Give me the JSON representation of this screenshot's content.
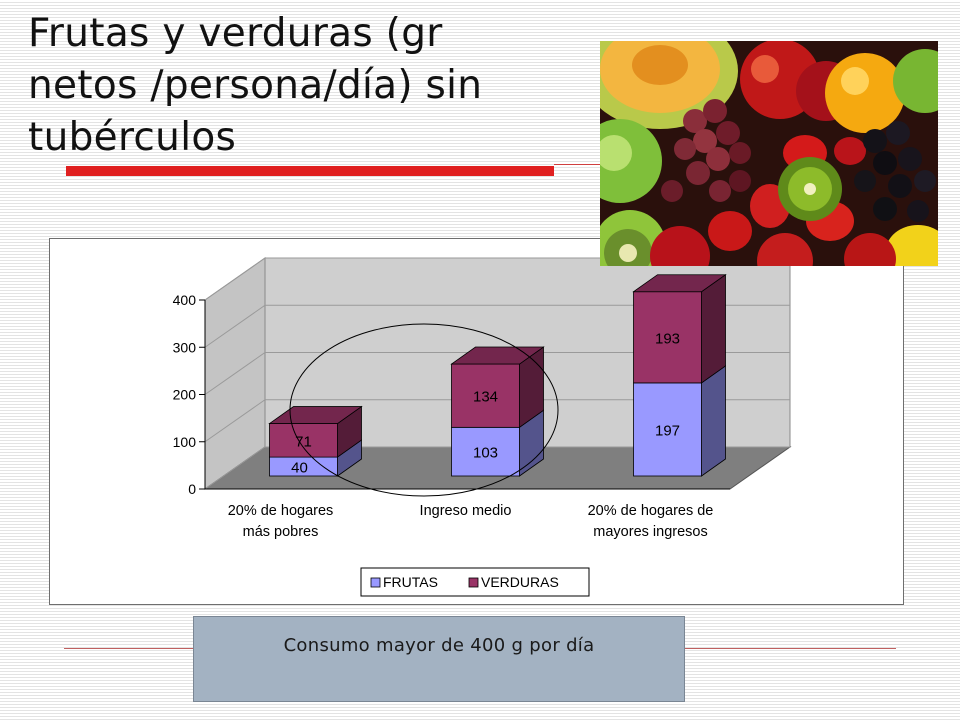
{
  "slide": {
    "title_line1": "Frutas y verduras (gr",
    "title_line2": "netos /persona/día) sin",
    "title_line3": "tubérculos",
    "note": "Consumo mayor de 400 g por día",
    "accent_color": "#e02020"
  },
  "photo": {
    "subject": "assorted fruits: melon, grapes, kiwi, strawberries, apples, orange"
  },
  "chart_data": {
    "type": "bar",
    "stacked": true,
    "style": "3d",
    "categories": [
      "20% de hogares\nmás pobres",
      "Ingreso medio",
      "20% de hogares de\nmayores ingresos"
    ],
    "series": [
      {
        "name": "FRUTAS",
        "values": [
          40,
          103,
          197
        ],
        "color": "#9999ff"
      },
      {
        "name": "VERDURAS",
        "values": [
          71,
          134,
          193
        ],
        "color": "#993366"
      }
    ],
    "ylim": [
      0,
      400
    ],
    "yticks": [
      0,
      100,
      200,
      300,
      400
    ],
    "grid": true,
    "legend": "bottom",
    "annotation": "ellipse around first two categories"
  }
}
